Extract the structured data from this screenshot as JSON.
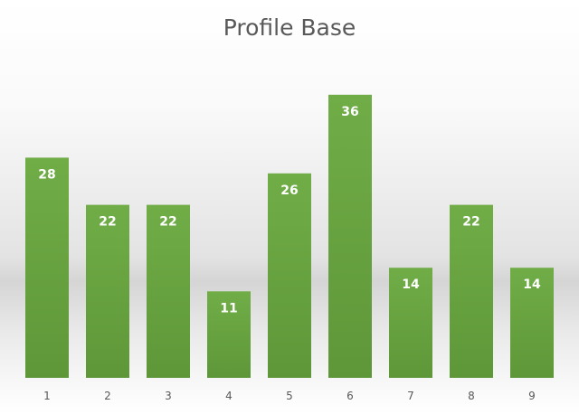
{
  "chart_data": {
    "type": "bar",
    "title": "Profile Base",
    "categories": [
      "1",
      "2",
      "3",
      "4",
      "5",
      "6",
      "7",
      "8",
      "9"
    ],
    "values": [
      28,
      22,
      22,
      11,
      26,
      36,
      14,
      22,
      14
    ],
    "xlabel": "",
    "ylabel": "",
    "ylim": [
      0,
      36
    ],
    "grid": false,
    "legend": "none",
    "bar_color": "#70AD47",
    "bar_color_dark": "#5E9738",
    "label_color": "#FFFFFF"
  }
}
